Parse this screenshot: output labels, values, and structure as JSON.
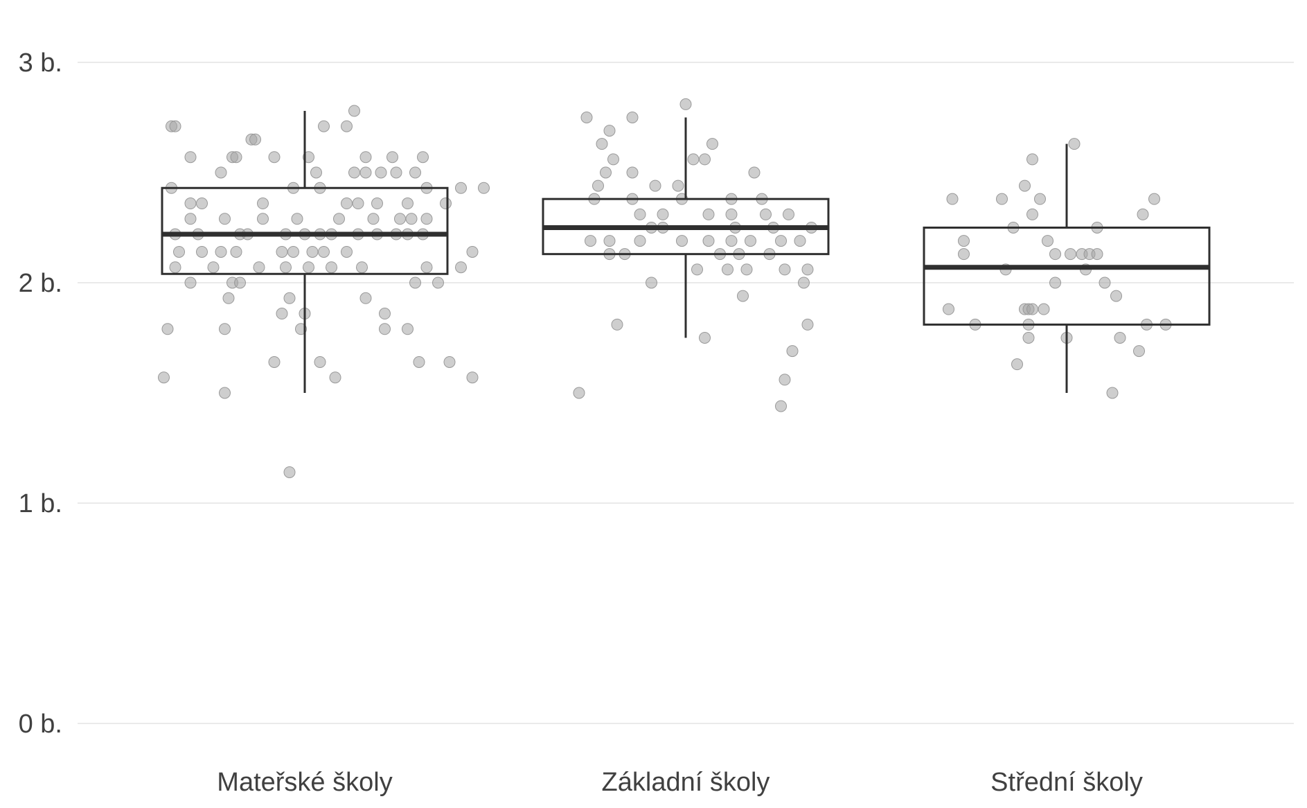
{
  "chart_data": {
    "type": "boxplot",
    "title": "",
    "xlabel": "",
    "ylabel": "",
    "ylim": [
      0,
      3.07
    ],
    "yticks": [
      {
        "value": 0,
        "label": "0 b."
      },
      {
        "value": 1,
        "label": "1 b."
      },
      {
        "value": 2,
        "label": "2 b."
      },
      {
        "value": 3,
        "label": "3 b."
      }
    ],
    "grid": true,
    "legend": "none",
    "colors": {
      "point": "#a6a6a6",
      "box": "#2f2f2f",
      "grid": "#e3e3e3",
      "text": "#404040"
    },
    "categories": [
      "Mateřské školy",
      "Základní školy",
      "Střední školy"
    ],
    "boxes": [
      {
        "whisker_low": 1.5,
        "q1": 2.04,
        "median": 2.22,
        "q3": 2.43,
        "whisker_high": 2.78
      },
      {
        "whisker_low": 1.75,
        "q1": 2.13,
        "median": 2.25,
        "q3": 2.38,
        "whisker_high": 2.75
      },
      {
        "whisker_low": 1.5,
        "q1": 1.81,
        "median": 2.07,
        "q3": 2.25,
        "whisker_high": 2.63
      }
    ],
    "points": [
      [
        {
          "x": 0.65,
          "y": 2.71
        },
        {
          "x": 0.66,
          "y": 2.71
        },
        {
          "x": 1.05,
          "y": 2.71
        },
        {
          "x": 1.11,
          "y": 2.71
        },
        {
          "x": 1.13,
          "y": 2.78
        },
        {
          "x": 0.86,
          "y": 2.65
        },
        {
          "x": 0.87,
          "y": 2.65
        },
        {
          "x": 0.7,
          "y": 2.57
        },
        {
          "x": 0.81,
          "y": 2.57
        },
        {
          "x": 0.82,
          "y": 2.57
        },
        {
          "x": 0.92,
          "y": 2.57
        },
        {
          "x": 1.01,
          "y": 2.57
        },
        {
          "x": 1.16,
          "y": 2.57
        },
        {
          "x": 1.23,
          "y": 2.57
        },
        {
          "x": 1.31,
          "y": 2.57
        },
        {
          "x": 0.78,
          "y": 2.5
        },
        {
          "x": 1.03,
          "y": 2.5
        },
        {
          "x": 1.13,
          "y": 2.5
        },
        {
          "x": 1.16,
          "y": 2.5
        },
        {
          "x": 1.2,
          "y": 2.5
        },
        {
          "x": 1.24,
          "y": 2.5
        },
        {
          "x": 1.29,
          "y": 2.5
        },
        {
          "x": 0.65,
          "y": 2.43
        },
        {
          "x": 0.97,
          "y": 2.43
        },
        {
          "x": 1.04,
          "y": 2.43
        },
        {
          "x": 1.32,
          "y": 2.43
        },
        {
          "x": 1.41,
          "y": 2.43
        },
        {
          "x": 1.47,
          "y": 2.43
        },
        {
          "x": 0.7,
          "y": 2.36
        },
        {
          "x": 0.73,
          "y": 2.36
        },
        {
          "x": 0.89,
          "y": 2.36
        },
        {
          "x": 1.11,
          "y": 2.36
        },
        {
          "x": 1.14,
          "y": 2.36
        },
        {
          "x": 1.19,
          "y": 2.36
        },
        {
          "x": 1.27,
          "y": 2.36
        },
        {
          "x": 1.37,
          "y": 2.36
        },
        {
          "x": 0.7,
          "y": 2.29
        },
        {
          "x": 0.79,
          "y": 2.29
        },
        {
          "x": 0.89,
          "y": 2.29
        },
        {
          "x": 0.98,
          "y": 2.29
        },
        {
          "x": 1.09,
          "y": 2.29
        },
        {
          "x": 1.18,
          "y": 2.29
        },
        {
          "x": 1.25,
          "y": 2.29
        },
        {
          "x": 1.28,
          "y": 2.29
        },
        {
          "x": 1.32,
          "y": 2.29
        },
        {
          "x": 0.66,
          "y": 2.22
        },
        {
          "x": 0.72,
          "y": 2.22
        },
        {
          "x": 0.83,
          "y": 2.22
        },
        {
          "x": 0.85,
          "y": 2.22
        },
        {
          "x": 0.95,
          "y": 2.22
        },
        {
          "x": 1.0,
          "y": 2.22
        },
        {
          "x": 1.04,
          "y": 2.22
        },
        {
          "x": 1.07,
          "y": 2.22
        },
        {
          "x": 1.14,
          "y": 2.22
        },
        {
          "x": 1.19,
          "y": 2.22
        },
        {
          "x": 1.24,
          "y": 2.22
        },
        {
          "x": 1.27,
          "y": 2.22
        },
        {
          "x": 1.31,
          "y": 2.22
        },
        {
          "x": 0.67,
          "y": 2.14
        },
        {
          "x": 0.73,
          "y": 2.14
        },
        {
          "x": 0.78,
          "y": 2.14
        },
        {
          "x": 0.82,
          "y": 2.14
        },
        {
          "x": 0.94,
          "y": 2.14
        },
        {
          "x": 0.97,
          "y": 2.14
        },
        {
          "x": 1.02,
          "y": 2.14
        },
        {
          "x": 1.05,
          "y": 2.14
        },
        {
          "x": 1.11,
          "y": 2.14
        },
        {
          "x": 1.44,
          "y": 2.14
        },
        {
          "x": 0.66,
          "y": 2.07
        },
        {
          "x": 0.76,
          "y": 2.07
        },
        {
          "x": 0.88,
          "y": 2.07
        },
        {
          "x": 0.95,
          "y": 2.07
        },
        {
          "x": 1.01,
          "y": 2.07
        },
        {
          "x": 1.07,
          "y": 2.07
        },
        {
          "x": 1.15,
          "y": 2.07
        },
        {
          "x": 1.32,
          "y": 2.07
        },
        {
          "x": 1.41,
          "y": 2.07
        },
        {
          "x": 0.7,
          "y": 2.0
        },
        {
          "x": 0.81,
          "y": 2.0
        },
        {
          "x": 0.83,
          "y": 2.0
        },
        {
          "x": 1.29,
          "y": 2.0
        },
        {
          "x": 1.35,
          "y": 2.0
        },
        {
          "x": 0.8,
          "y": 1.93
        },
        {
          "x": 0.96,
          "y": 1.93
        },
        {
          "x": 1.16,
          "y": 1.93
        },
        {
          "x": 0.94,
          "y": 1.86
        },
        {
          "x": 1.0,
          "y": 1.86
        },
        {
          "x": 1.21,
          "y": 1.86
        },
        {
          "x": 0.64,
          "y": 1.79
        },
        {
          "x": 0.79,
          "y": 1.79
        },
        {
          "x": 0.99,
          "y": 1.79
        },
        {
          "x": 1.21,
          "y": 1.79
        },
        {
          "x": 1.27,
          "y": 1.79
        },
        {
          "x": 0.92,
          "y": 1.64
        },
        {
          "x": 1.04,
          "y": 1.64
        },
        {
          "x": 1.3,
          "y": 1.64
        },
        {
          "x": 1.38,
          "y": 1.64
        },
        {
          "x": 0.63,
          "y": 1.57
        },
        {
          "x": 1.08,
          "y": 1.57
        },
        {
          "x": 1.44,
          "y": 1.57
        },
        {
          "x": 0.79,
          "y": 1.5
        },
        {
          "x": 0.96,
          "y": 1.14
        }
      ],
      [
        {
          "x": 1.74,
          "y": 2.75
        },
        {
          "x": 1.86,
          "y": 2.75
        },
        {
          "x": 2.0,
          "y": 2.81
        },
        {
          "x": 1.8,
          "y": 2.69
        },
        {
          "x": 1.78,
          "y": 2.63
        },
        {
          "x": 2.07,
          "y": 2.63
        },
        {
          "x": 1.81,
          "y": 2.56
        },
        {
          "x": 2.02,
          "y": 2.56
        },
        {
          "x": 2.05,
          "y": 2.56
        },
        {
          "x": 1.79,
          "y": 2.5
        },
        {
          "x": 1.86,
          "y": 2.5
        },
        {
          "x": 2.18,
          "y": 2.5
        },
        {
          "x": 1.77,
          "y": 2.44
        },
        {
          "x": 1.92,
          "y": 2.44
        },
        {
          "x": 1.98,
          "y": 2.44
        },
        {
          "x": 1.76,
          "y": 2.38
        },
        {
          "x": 1.86,
          "y": 2.38
        },
        {
          "x": 1.99,
          "y": 2.38
        },
        {
          "x": 2.12,
          "y": 2.38
        },
        {
          "x": 2.2,
          "y": 2.38
        },
        {
          "x": 1.88,
          "y": 2.31
        },
        {
          "x": 1.94,
          "y": 2.31
        },
        {
          "x": 2.06,
          "y": 2.31
        },
        {
          "x": 2.12,
          "y": 2.31
        },
        {
          "x": 2.21,
          "y": 2.31
        },
        {
          "x": 2.27,
          "y": 2.31
        },
        {
          "x": 1.91,
          "y": 2.25
        },
        {
          "x": 1.94,
          "y": 2.25
        },
        {
          "x": 2.13,
          "y": 2.25
        },
        {
          "x": 2.23,
          "y": 2.25
        },
        {
          "x": 2.33,
          "y": 2.25
        },
        {
          "x": 1.75,
          "y": 2.19
        },
        {
          "x": 1.8,
          "y": 2.19
        },
        {
          "x": 1.88,
          "y": 2.19
        },
        {
          "x": 1.99,
          "y": 2.19
        },
        {
          "x": 2.06,
          "y": 2.19
        },
        {
          "x": 2.12,
          "y": 2.19
        },
        {
          "x": 2.17,
          "y": 2.19
        },
        {
          "x": 2.25,
          "y": 2.19
        },
        {
          "x": 2.3,
          "y": 2.19
        },
        {
          "x": 1.8,
          "y": 2.13
        },
        {
          "x": 1.84,
          "y": 2.13
        },
        {
          "x": 2.09,
          "y": 2.13
        },
        {
          "x": 2.14,
          "y": 2.13
        },
        {
          "x": 2.22,
          "y": 2.13
        },
        {
          "x": 2.03,
          "y": 2.06
        },
        {
          "x": 2.11,
          "y": 2.06
        },
        {
          "x": 2.16,
          "y": 2.06
        },
        {
          "x": 2.26,
          "y": 2.06
        },
        {
          "x": 2.32,
          "y": 2.06
        },
        {
          "x": 1.91,
          "y": 2.0
        },
        {
          "x": 2.31,
          "y": 2.0
        },
        {
          "x": 2.15,
          "y": 1.94
        },
        {
          "x": 1.82,
          "y": 1.81
        },
        {
          "x": 2.32,
          "y": 1.81
        },
        {
          "x": 2.05,
          "y": 1.75
        },
        {
          "x": 2.28,
          "y": 1.69
        },
        {
          "x": 2.26,
          "y": 1.56
        },
        {
          "x": 1.72,
          "y": 1.5
        },
        {
          "x": 2.25,
          "y": 1.44
        }
      ],
      [
        {
          "x": 3.02,
          "y": 2.63
        },
        {
          "x": 2.91,
          "y": 2.56
        },
        {
          "x": 2.89,
          "y": 2.44
        },
        {
          "x": 2.7,
          "y": 2.38
        },
        {
          "x": 2.83,
          "y": 2.38
        },
        {
          "x": 2.93,
          "y": 2.38
        },
        {
          "x": 3.23,
          "y": 2.38
        },
        {
          "x": 2.91,
          "y": 2.31
        },
        {
          "x": 3.2,
          "y": 2.31
        },
        {
          "x": 2.86,
          "y": 2.25
        },
        {
          "x": 3.08,
          "y": 2.25
        },
        {
          "x": 2.73,
          "y": 2.19
        },
        {
          "x": 2.95,
          "y": 2.19
        },
        {
          "x": 2.73,
          "y": 2.13
        },
        {
          "x": 2.97,
          "y": 2.13
        },
        {
          "x": 3.01,
          "y": 2.13
        },
        {
          "x": 3.04,
          "y": 2.13
        },
        {
          "x": 3.06,
          "y": 2.13
        },
        {
          "x": 3.08,
          "y": 2.13
        },
        {
          "x": 2.84,
          "y": 2.06
        },
        {
          "x": 3.05,
          "y": 2.06
        },
        {
          "x": 2.97,
          "y": 2.0
        },
        {
          "x": 3.1,
          "y": 2.0
        },
        {
          "x": 3.13,
          "y": 1.94
        },
        {
          "x": 2.69,
          "y": 1.88
        },
        {
          "x": 2.89,
          "y": 1.88
        },
        {
          "x": 2.9,
          "y": 1.88
        },
        {
          "x": 2.91,
          "y": 1.88
        },
        {
          "x": 2.94,
          "y": 1.88
        },
        {
          "x": 2.76,
          "y": 1.81
        },
        {
          "x": 2.9,
          "y": 1.81
        },
        {
          "x": 3.21,
          "y": 1.81
        },
        {
          "x": 3.26,
          "y": 1.81
        },
        {
          "x": 2.9,
          "y": 1.75
        },
        {
          "x": 3.0,
          "y": 1.75
        },
        {
          "x": 3.14,
          "y": 1.75
        },
        {
          "x": 3.19,
          "y": 1.69
        },
        {
          "x": 2.87,
          "y": 1.63
        },
        {
          "x": 3.12,
          "y": 1.5
        }
      ]
    ]
  }
}
